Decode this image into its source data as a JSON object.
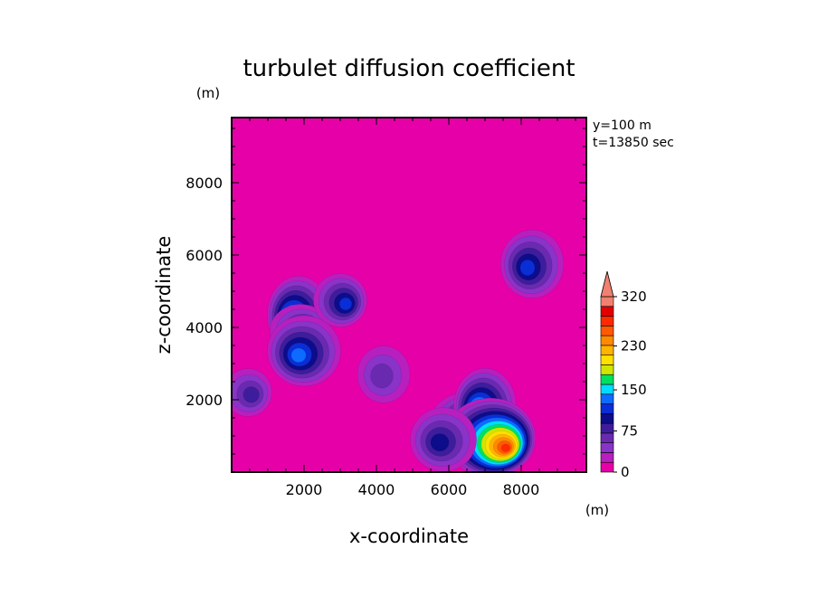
{
  "chart_data": {
    "type": "heatmap",
    "subtype": "filled-contour",
    "title": "turbulet diffusion coefficient",
    "xlabel": "x-coordinate",
    "ylabel": "z-coordinate",
    "x_unit": "(m)",
    "y_unit": "(m)",
    "xlim": [
      0,
      9800
    ],
    "ylim": [
      0,
      9800
    ],
    "xticks": [
      2000,
      4000,
      6000,
      8000
    ],
    "yticks": [
      2000,
      4000,
      6000,
      8000
    ],
    "xtick_labels": [
      "2000",
      "4000",
      "6000",
      "8000"
    ],
    "ytick_labels": [
      "2000",
      "4000",
      "6000",
      "8000"
    ],
    "annotations": [
      "y=100 m",
      "t=13850 sec"
    ],
    "background_level_color": "#e600a8",
    "colorbar": {
      "levels": [
        0,
        15,
        30,
        45,
        60,
        75,
        90,
        105,
        120,
        135,
        150,
        165,
        180,
        195,
        210,
        230,
        250,
        270,
        290,
        300,
        320
      ],
      "colors": [
        "#e600a8",
        "#b81fbf",
        "#8a33c8",
        "#6a2ab0",
        "#3d1d9c",
        "#0d0c8a",
        "#0a2ed6",
        "#0d6cff",
        "#00dcff",
        "#00e060",
        "#cfe600",
        "#ffe000",
        "#ffb400",
        "#ff8a00",
        "#ff5a00",
        "#ff2a00",
        "#e00000",
        "#f08070"
      ],
      "tick_values": [
        0,
        75,
        150,
        230,
        320
      ],
      "tick_labels": [
        "0",
        "75",
        "150",
        "230",
        "320"
      ],
      "extend": "max",
      "position": "right"
    },
    "features": [
      {
        "x": 1850,
        "z": 4350,
        "peak": 140,
        "note": "blob near x=1850, z=4350"
      },
      {
        "x": 1900,
        "z": 3900,
        "peak": 90
      },
      {
        "x": 2000,
        "z": 3350,
        "peak": 110
      },
      {
        "x": 3000,
        "z": 4750,
        "peak": 90
      },
      {
        "x": 8300,
        "z": 5750,
        "peak": 100
      },
      {
        "x": 6600,
        "z": 1350,
        "peak": 145
      },
      {
        "x": 7000,
        "z": 1800,
        "peak": 140
      },
      {
        "x": 7150,
        "z": 950,
        "peak": 230
      },
      {
        "x": 5850,
        "z": 900,
        "peak": 80
      },
      {
        "x": 450,
        "z": 2200,
        "peak": 60
      },
      {
        "x": 4200,
        "z": 2700,
        "peak": 50
      }
    ]
  }
}
